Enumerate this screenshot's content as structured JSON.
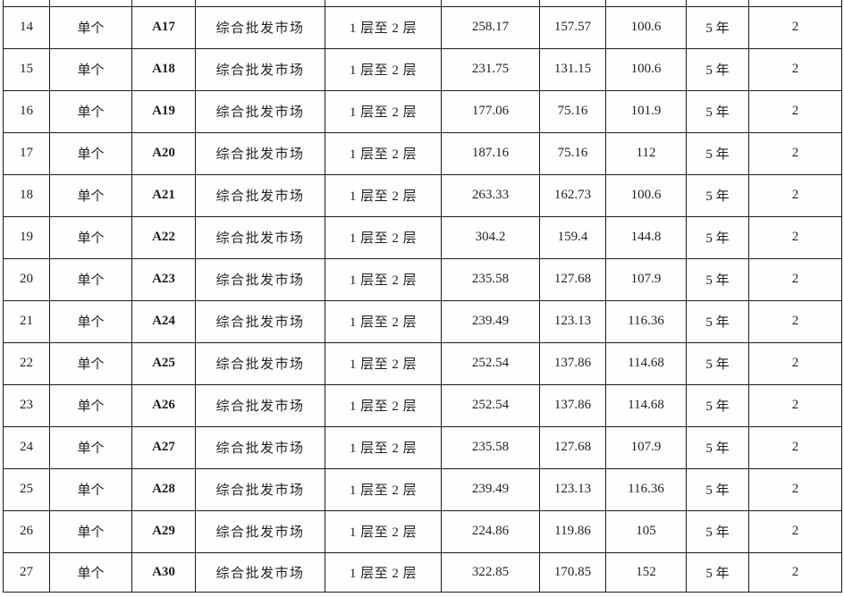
{
  "document": {
    "type": "table-fragment",
    "description_visible_content_only": true
  },
  "colors": {
    "grid_line": "#1a1a1a",
    "text": "#1f1f1f",
    "highlight_red": "#e02e24",
    "background": "#fefefe"
  },
  "table": {
    "cell_fields": [
      "index",
      "scope",
      "unit",
      "usage",
      "floors",
      "area_total",
      "area_a",
      "area_b",
      "term",
      "count"
    ],
    "rows": [
      {
        "index": "14",
        "scope": "单个",
        "unit": "A17",
        "usage": "综合批发市场",
        "floors": "1 层至 2 层",
        "area_total": "258.17",
        "area_a": "157.57",
        "area_b": "100.6",
        "term": "5 年",
        "count": "2"
      },
      {
        "index": "15",
        "scope": "单个",
        "unit": "A18",
        "usage": "综合批发市场",
        "floors": "1 层至 2 层",
        "area_total": "231.75",
        "area_a": "131.15",
        "area_b": "100.6",
        "term": "5 年",
        "count": "2"
      },
      {
        "index": "16",
        "scope": "单个",
        "unit": "A19",
        "usage": "综合批发市场",
        "floors": "1 层至 2 层",
        "area_total": "177.06",
        "area_a": "75.16",
        "area_b": "101.9",
        "term": "5 年",
        "count": "2"
      },
      {
        "index": "17",
        "scope": "单个",
        "unit": "A20",
        "usage": "综合批发市场",
        "floors": "1 层至 2 层",
        "area_total": "187.16",
        "area_a": "75.16",
        "area_b": "112",
        "term": "5 年",
        "count": "2"
      },
      {
        "index": "18",
        "scope": "单个",
        "unit": "A21",
        "usage": "综合批发市场",
        "floors": "1 层至 2 层",
        "area_total": "263.33",
        "area_a": "162.73",
        "area_b": "100.6",
        "term": "5 年",
        "count": "2"
      },
      {
        "index": "19",
        "scope": "单个",
        "unit": "A22",
        "usage": "综合批发市场",
        "floors": "1 层至 2 层",
        "area_total": "304.2",
        "area_a": "159.4",
        "area_b": "144.8",
        "term": "5 年",
        "count": "2"
      },
      {
        "index": "20",
        "scope": "单个",
        "unit": "A23",
        "usage": "综合批发市场",
        "floors": "1 层至 2 层",
        "area_total": "235.58",
        "area_a": "127.68",
        "area_b": "107.9",
        "term": "5 年",
        "count": "2"
      },
      {
        "index": "21",
        "scope": "单个",
        "unit": "A24",
        "usage": "综合批发市场",
        "floors": "1 层至 2 层",
        "area_total": "239.49",
        "area_a": "123.13",
        "area_b": "116.36",
        "term": "5 年",
        "count": "2"
      },
      {
        "index": "22",
        "scope": "单个",
        "unit": "A25",
        "usage": "综合批发市场",
        "floors": "1 层至 2 层",
        "area_total": "252.54",
        "area_a": "137.86",
        "area_b": "114.68",
        "term": "5 年",
        "count": "2"
      },
      {
        "index": "23",
        "scope": "单个",
        "unit": "A26",
        "usage": "综合批发市场",
        "floors": "1 层至 2 层",
        "area_total": "252.54",
        "area_a": "137.86",
        "area_b": "114.68",
        "term": "5 年",
        "count": "2"
      },
      {
        "index": "24",
        "scope": "单个",
        "unit": "A27",
        "usage": "综合批发市场",
        "floors": "1 层至 2 层",
        "area_total": "235.58",
        "area_a": "127.68",
        "area_b": "107.9",
        "term": "5 年",
        "count": "2"
      },
      {
        "index": "25",
        "scope": "单个",
        "unit": "A28",
        "usage": "综合批发市场",
        "floors": "1 层至 2 层",
        "area_total": "239.49",
        "area_a": "123.13",
        "area_b": "116.36",
        "term": "5 年",
        "count": "2"
      },
      {
        "index": "26",
        "scope": "单个",
        "unit": "A29",
        "usage": "综合批发市场",
        "floors": "1 层至 2 层",
        "area_total": "224.86",
        "area_a": "119.86",
        "area_b": "105",
        "term": "5 年",
        "count": "2"
      },
      {
        "index": "27",
        "scope": "单个",
        "unit": "A30",
        "usage": "综合批发市场",
        "floors": "1 层至 2 层",
        "area_total": "322.85",
        "area_a": "170.85",
        "area_b": "152",
        "term": "5 年",
        "count": "2"
      }
    ]
  }
}
